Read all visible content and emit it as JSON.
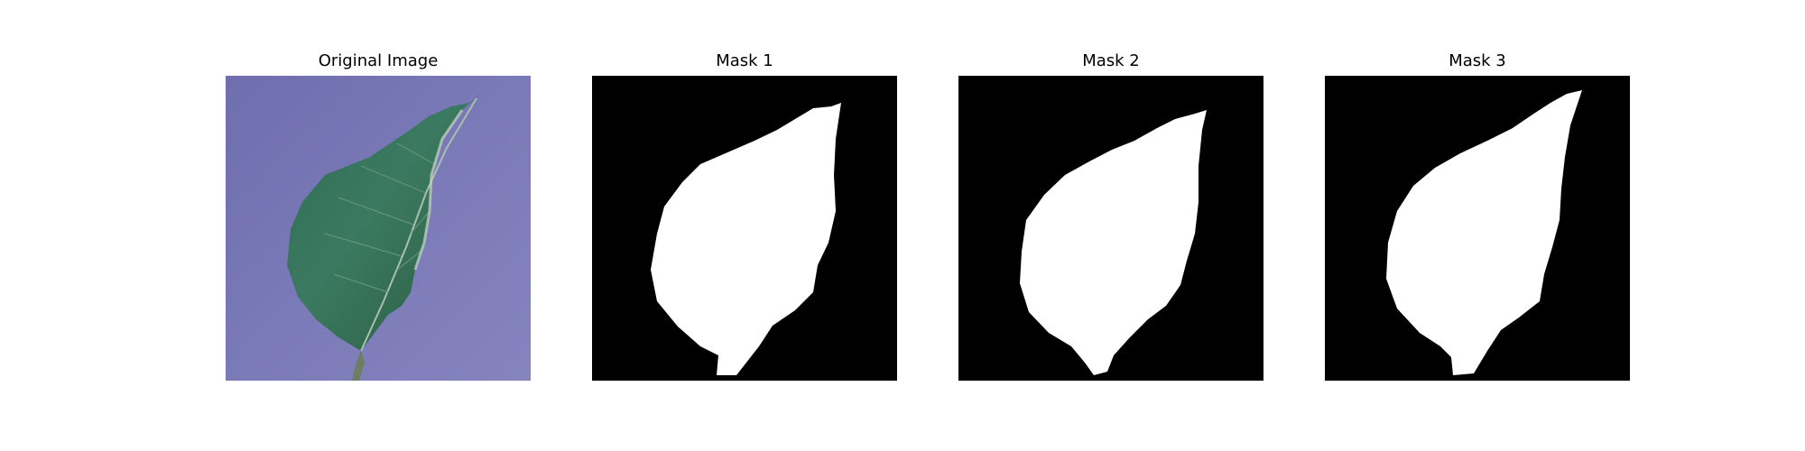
{
  "figure": {
    "panels": [
      {
        "title": "Original Image",
        "kind": "photo"
      },
      {
        "title": "Mask 1",
        "kind": "mask"
      },
      {
        "title": "Mask 2",
        "kind": "mask"
      },
      {
        "title": "Mask 3",
        "kind": "mask"
      }
    ],
    "colors": {
      "photo_background": "#7a79b6",
      "leaf": "#2f6f4f",
      "leaf_highlight": "#4c8c73",
      "vein": "#b5c7b5",
      "mask_background": "#000000",
      "mask_foreground": "#ffffff"
    }
  }
}
